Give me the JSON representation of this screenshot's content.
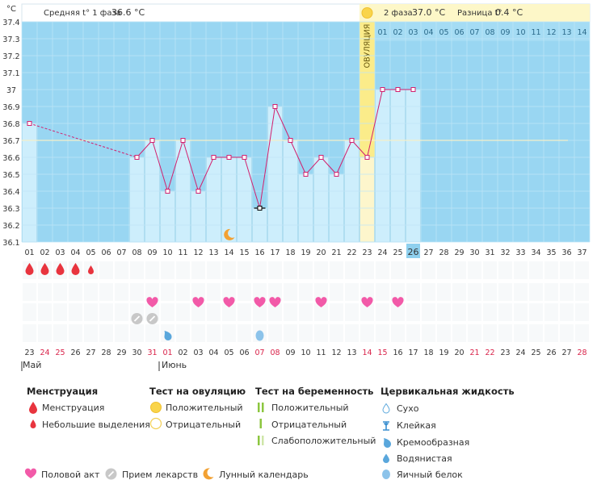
{
  "header": {
    "unit": "°C",
    "avg_phase1_label": "Средняя t° 1 фаза",
    "avg_phase1_value": "36.6 °C",
    "avg_phase2_label": "2 фаза",
    "avg_phase2_value": "37.0 °C",
    "diff_label": "Разница t°",
    "diff_value": "0.4 °C",
    "ovulation_label": "ОВУЛЯЦИЯ"
  },
  "chart_data": {
    "type": "line",
    "title": "",
    "ylabel": "°C",
    "ylim": [
      36.1,
      37.4
    ],
    "y_ticks": [
      "36.1",
      "36.2",
      "36.3",
      "36.4",
      "36.5",
      "36.6",
      "36.7",
      "36.8",
      "36.9",
      "37",
      "37.1",
      "37.2",
      "37.3",
      "37.4"
    ],
    "cycle_days": [
      "01",
      "02",
      "03",
      "04",
      "05",
      "06",
      "07",
      "08",
      "09",
      "10",
      "11",
      "12",
      "13",
      "14",
      "15",
      "16",
      "17",
      "18",
      "19",
      "20",
      "21",
      "22",
      "23",
      "24",
      "25",
      "26",
      "27",
      "28",
      "29",
      "30",
      "31",
      "32",
      "33",
      "34",
      "35",
      "36",
      "37"
    ],
    "current_day": "26",
    "post_ovulation_days": [
      "01",
      "02",
      "03",
      "04",
      "05",
      "06",
      "07",
      "08",
      "09",
      "10",
      "11",
      "12",
      "13",
      "14"
    ],
    "ovulation_day": 23,
    "coverline": 36.7,
    "series": [
      {
        "values": [
          36.8,
          null,
          null,
          null,
          null,
          null,
          null,
          36.6,
          36.7,
          36.4,
          36.7,
          36.4,
          36.6,
          36.6,
          36.6,
          36.3,
          36.9,
          36.7,
          36.5,
          36.6,
          36.5,
          36.7,
          36.6,
          37.0,
          37.0,
          37.0
        ]
      }
    ],
    "marked_point_day": 16,
    "moon_day": 14,
    "calendar_dates": [
      "23",
      "24",
      "25",
      "26",
      "27",
      "28",
      "29",
      "30",
      "31",
      "01",
      "02",
      "03",
      "04",
      "05",
      "06",
      "07",
      "08",
      "09",
      "10",
      "11",
      "12",
      "13",
      "14",
      "15",
      "16",
      "17",
      "18",
      "19",
      "20",
      "21",
      "22",
      "23",
      "24",
      "25",
      "26",
      "27",
      "28"
    ],
    "calendar_weekend_dates": [
      "24",
      "25",
      "31",
      "01",
      "07",
      "08",
      "14",
      "15",
      "21",
      "22",
      "28"
    ],
    "today_date": "17",
    "month_labels": [
      "Май",
      "Июнь"
    ],
    "menstruation_days": [
      1,
      2,
      3,
      4
    ],
    "spotting_days": [
      5
    ],
    "intercourse_days": [
      9,
      12,
      14,
      16,
      17,
      20,
      23,
      25
    ],
    "medication_days": [
      8,
      9
    ],
    "cervical_fluid": [
      {
        "day": 10,
        "kind": "creamy"
      },
      {
        "day": 16,
        "kind": "egg-white"
      }
    ]
  },
  "legend": {
    "menstruation": {
      "title": "Менструация",
      "items": [
        "Менструация",
        "Небольшие выделения"
      ]
    },
    "ovulation_test": {
      "title": "Тест на овуляцию",
      "items": [
        "Положительный",
        "Отрицательный"
      ]
    },
    "pregnancy_test": {
      "title": "Тест на беременность",
      "items": [
        "Положительный",
        "Отрицательный",
        "Слабоположительный"
      ]
    },
    "cervical": {
      "title": "Цервикальная жидкость",
      "items": [
        "Сухо",
        "Клейкая",
        "Кремообразная",
        "Водянистая",
        "Яичный белок"
      ]
    },
    "bottom": {
      "intercourse": "Половой акт",
      "medication": "Прием лекарств",
      "lunar": "Лунный календарь"
    }
  }
}
